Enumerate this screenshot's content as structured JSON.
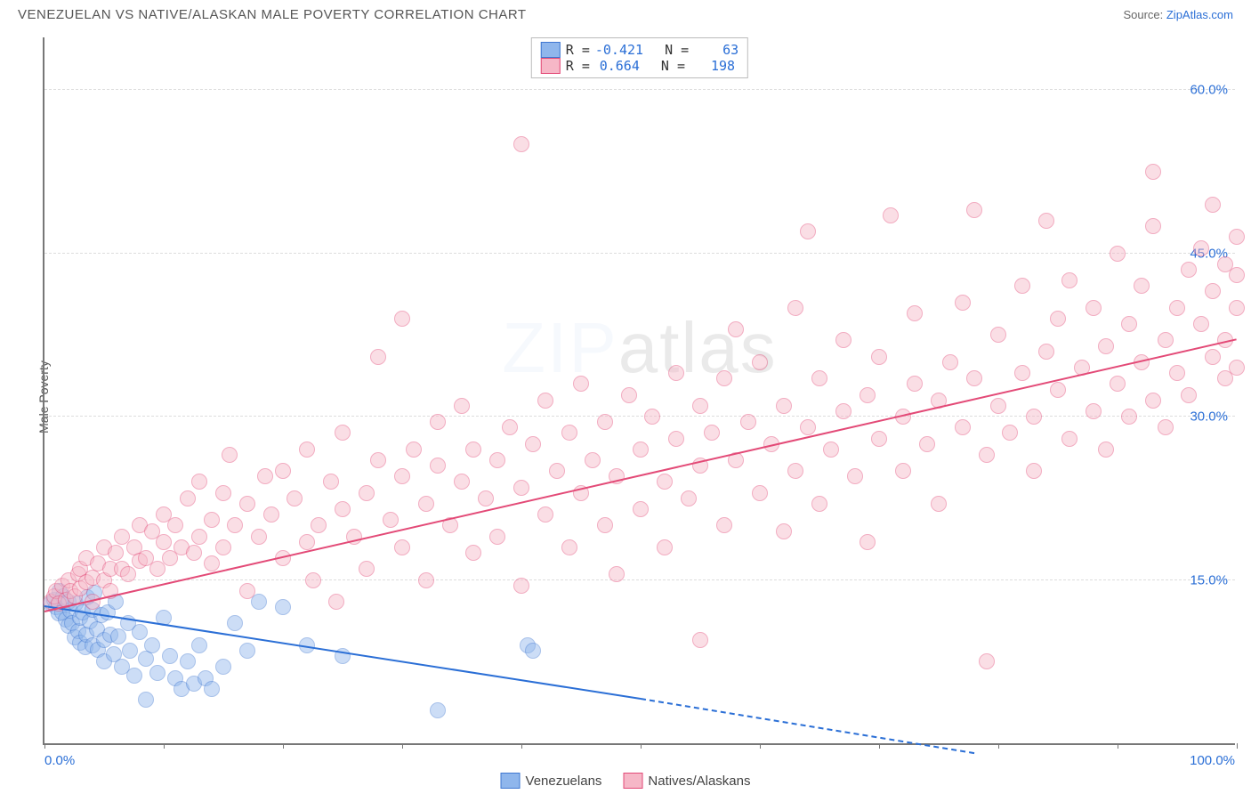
{
  "title": "VENEZUELAN VS NATIVE/ALASKAN MALE POVERTY CORRELATION CHART",
  "source_prefix": "Source: ",
  "source_name": "ZipAtlas.com",
  "watermark": "ZIPatlas",
  "ylabel": "Male Poverty",
  "chart": {
    "type": "scatter",
    "xlim": [
      0,
      100
    ],
    "ylim": [
      0,
      65
    ],
    "x_ticks": [
      0,
      10,
      20,
      30,
      40,
      50,
      60,
      70,
      80,
      90,
      100
    ],
    "x_tick_labels": {
      "0": "0.0%",
      "100": "100.0%"
    },
    "y_gridlines": [
      15,
      30,
      45,
      60
    ],
    "y_tick_labels": {
      "15": "15.0%",
      "30": "30.0%",
      "45": "45.0%",
      "60": "60.0%"
    },
    "grid_color": "#dddddd",
    "axis_color": "#777777",
    "background": "#ffffff",
    "marker_radius": 9,
    "marker_opacity": 0.45,
    "series": [
      {
        "name": "Venezuelans",
        "fill": "#8fb6ec",
        "stroke": "#3f77d1",
        "R": "-0.421",
        "N": "63",
        "trend": {
          "x1": 0,
          "y1": 12.5,
          "x2": 50,
          "y2": 4.0,
          "color": "#2b6fd6",
          "dash_after_x": 50,
          "x3": 78,
          "y3": -1.0
        },
        "points": [
          [
            0.5,
            12.8
          ],
          [
            0.8,
            13.2
          ],
          [
            1.0,
            12.5
          ],
          [
            1.2,
            11.9
          ],
          [
            1.3,
            14.0
          ],
          [
            1.5,
            12.0
          ],
          [
            1.6,
            13.5
          ],
          [
            1.8,
            11.4
          ],
          [
            2.0,
            10.8
          ],
          [
            2.0,
            13.0
          ],
          [
            2.2,
            12.2
          ],
          [
            2.3,
            11.0
          ],
          [
            2.5,
            9.7
          ],
          [
            2.6,
            12.8
          ],
          [
            2.8,
            10.3
          ],
          [
            3.0,
            11.5
          ],
          [
            3.0,
            9.2
          ],
          [
            3.2,
            12.0
          ],
          [
            3.4,
            8.8
          ],
          [
            3.5,
            10.0
          ],
          [
            3.6,
            13.4
          ],
          [
            3.8,
            11.2
          ],
          [
            4.0,
            9.0
          ],
          [
            4.0,
            12.3
          ],
          [
            4.2,
            13.8
          ],
          [
            4.4,
            10.5
          ],
          [
            4.5,
            8.6
          ],
          [
            4.8,
            11.8
          ],
          [
            5.0,
            9.5
          ],
          [
            5.0,
            7.5
          ],
          [
            5.3,
            12.0
          ],
          [
            5.5,
            10.0
          ],
          [
            5.8,
            8.2
          ],
          [
            6.0,
            13.0
          ],
          [
            6.2,
            9.8
          ],
          [
            6.5,
            7.0
          ],
          [
            7.0,
            11.0
          ],
          [
            7.2,
            8.5
          ],
          [
            7.5,
            6.2
          ],
          [
            8.0,
            10.2
          ],
          [
            8.5,
            7.8
          ],
          [
            8.5,
            4.0
          ],
          [
            9.0,
            9.0
          ],
          [
            9.5,
            6.5
          ],
          [
            10.0,
            11.5
          ],
          [
            10.5,
            8.0
          ],
          [
            11.0,
            6.0
          ],
          [
            11.5,
            5.0
          ],
          [
            12.0,
            7.5
          ],
          [
            12.5,
            5.5
          ],
          [
            13.0,
            9.0
          ],
          [
            13.5,
            6.0
          ],
          [
            14.0,
            5.0
          ],
          [
            15.0,
            7.0
          ],
          [
            16.0,
            11.0
          ],
          [
            17.0,
            8.5
          ],
          [
            18.0,
            13.0
          ],
          [
            20.0,
            12.5
          ],
          [
            22.0,
            9.0
          ],
          [
            25.0,
            8.0
          ],
          [
            33.0,
            3.0
          ],
          [
            40.5,
            9.0
          ],
          [
            41.0,
            8.5
          ]
        ]
      },
      {
        "name": "Natives/Alaskans",
        "fill": "#f6b7c7",
        "stroke": "#e34a77",
        "R": "0.664",
        "N": "198",
        "trend": {
          "x1": 0,
          "y1": 12.0,
          "x2": 100,
          "y2": 37.0,
          "color": "#e34a77"
        },
        "points": [
          [
            0.5,
            13.0
          ],
          [
            0.8,
            13.5
          ],
          [
            1.0,
            14.0
          ],
          [
            1.2,
            12.8
          ],
          [
            1.5,
            14.5
          ],
          [
            1.8,
            13.2
          ],
          [
            2.0,
            15.0
          ],
          [
            2.2,
            14.0
          ],
          [
            2.5,
            13.5
          ],
          [
            2.8,
            15.5
          ],
          [
            3.0,
            14.2
          ],
          [
            3.0,
            16.0
          ],
          [
            3.5,
            14.8
          ],
          [
            3.5,
            17.0
          ],
          [
            4.0,
            15.2
          ],
          [
            4.0,
            13.0
          ],
          [
            4.5,
            16.5
          ],
          [
            5.0,
            15.0
          ],
          [
            5.0,
            18.0
          ],
          [
            5.5,
            16.0
          ],
          [
            5.5,
            14.0
          ],
          [
            6.0,
            17.5
          ],
          [
            6.5,
            16.0
          ],
          [
            6.5,
            19.0
          ],
          [
            7.0,
            15.5
          ],
          [
            7.5,
            18.0
          ],
          [
            8.0,
            16.8
          ],
          [
            8.0,
            20.0
          ],
          [
            8.5,
            17.0
          ],
          [
            9.0,
            19.5
          ],
          [
            9.5,
            16.0
          ],
          [
            10.0,
            18.5
          ],
          [
            10.0,
            21.0
          ],
          [
            10.5,
            17.0
          ],
          [
            11.0,
            20.0
          ],
          [
            11.5,
            18.0
          ],
          [
            12.0,
            22.5
          ],
          [
            12.5,
            17.5
          ],
          [
            13.0,
            19.0
          ],
          [
            13.0,
            24.0
          ],
          [
            14.0,
            20.5
          ],
          [
            14.0,
            16.5
          ],
          [
            15.0,
            23.0
          ],
          [
            15.0,
            18.0
          ],
          [
            15.5,
            26.5
          ],
          [
            16.0,
            20.0
          ],
          [
            17.0,
            22.0
          ],
          [
            17.0,
            14.0
          ],
          [
            18.0,
            19.0
          ],
          [
            18.5,
            24.5
          ],
          [
            19.0,
            21.0
          ],
          [
            20.0,
            17.0
          ],
          [
            20.0,
            25.0
          ],
          [
            21.0,
            22.5
          ],
          [
            22.0,
            18.5
          ],
          [
            22.0,
            27.0
          ],
          [
            22.5,
            15.0
          ],
          [
            23.0,
            20.0
          ],
          [
            24.0,
            24.0
          ],
          [
            24.5,
            13.0
          ],
          [
            25.0,
            21.5
          ],
          [
            25.0,
            28.5
          ],
          [
            26.0,
            19.0
          ],
          [
            27.0,
            23.0
          ],
          [
            27.0,
            16.0
          ],
          [
            28.0,
            26.0
          ],
          [
            28.0,
            35.5
          ],
          [
            29.0,
            20.5
          ],
          [
            30.0,
            24.5
          ],
          [
            30.0,
            18.0
          ],
          [
            30.0,
            39.0
          ],
          [
            31.0,
            27.0
          ],
          [
            32.0,
            22.0
          ],
          [
            32.0,
            15.0
          ],
          [
            33.0,
            25.5
          ],
          [
            33.0,
            29.5
          ],
          [
            34.0,
            20.0
          ],
          [
            35.0,
            24.0
          ],
          [
            35.0,
            31.0
          ],
          [
            36.0,
            17.5
          ],
          [
            36.0,
            27.0
          ],
          [
            37.0,
            22.5
          ],
          [
            38.0,
            26.0
          ],
          [
            38.0,
            19.0
          ],
          [
            39.0,
            29.0
          ],
          [
            40.0,
            55.0
          ],
          [
            40.0,
            23.5
          ],
          [
            40.0,
            14.5
          ],
          [
            41.0,
            27.5
          ],
          [
            42.0,
            21.0
          ],
          [
            42.0,
            31.5
          ],
          [
            43.0,
            25.0
          ],
          [
            44.0,
            18.0
          ],
          [
            44.0,
            28.5
          ],
          [
            45.0,
            23.0
          ],
          [
            45.0,
            33.0
          ],
          [
            46.0,
            26.0
          ],
          [
            47.0,
            20.0
          ],
          [
            47.0,
            29.5
          ],
          [
            48.0,
            24.5
          ],
          [
            48.0,
            15.5
          ],
          [
            49.0,
            32.0
          ],
          [
            50.0,
            27.0
          ],
          [
            50.0,
            21.5
          ],
          [
            51.0,
            30.0
          ],
          [
            52.0,
            24.0
          ],
          [
            52.0,
            18.0
          ],
          [
            53.0,
            28.0
          ],
          [
            53.0,
            34.0
          ],
          [
            54.0,
            22.5
          ],
          [
            55.0,
            31.0
          ],
          [
            55.0,
            25.5
          ],
          [
            55.0,
            9.5
          ],
          [
            56.0,
            28.5
          ],
          [
            57.0,
            20.0
          ],
          [
            57.0,
            33.5
          ],
          [
            58.0,
            26.0
          ],
          [
            58.0,
            38.0
          ],
          [
            59.0,
            29.5
          ],
          [
            60.0,
            23.0
          ],
          [
            60.0,
            35.0
          ],
          [
            61.0,
            27.5
          ],
          [
            62.0,
            31.0
          ],
          [
            62.0,
            19.5
          ],
          [
            63.0,
            25.0
          ],
          [
            63.0,
            40.0
          ],
          [
            64.0,
            29.0
          ],
          [
            64.0,
            47.0
          ],
          [
            65.0,
            22.0
          ],
          [
            65.0,
            33.5
          ],
          [
            66.0,
            27.0
          ],
          [
            67.0,
            30.5
          ],
          [
            67.0,
            37.0
          ],
          [
            68.0,
            24.5
          ],
          [
            69.0,
            32.0
          ],
          [
            69.0,
            18.5
          ],
          [
            70.0,
            28.0
          ],
          [
            70.0,
            35.5
          ],
          [
            71.0,
            48.5
          ],
          [
            72.0,
            30.0
          ],
          [
            72.0,
            25.0
          ],
          [
            73.0,
            33.0
          ],
          [
            73.0,
            39.5
          ],
          [
            74.0,
            27.5
          ],
          [
            75.0,
            31.5
          ],
          [
            75.0,
            22.0
          ],
          [
            76.0,
            35.0
          ],
          [
            77.0,
            29.0
          ],
          [
            77.0,
            40.5
          ],
          [
            78.0,
            33.5
          ],
          [
            78.0,
            49.0
          ],
          [
            79.0,
            26.5
          ],
          [
            79.0,
            7.5
          ],
          [
            80.0,
            31.0
          ],
          [
            80.0,
            37.5
          ],
          [
            81.0,
            28.5
          ],
          [
            82.0,
            34.0
          ],
          [
            82.0,
            42.0
          ],
          [
            83.0,
            30.0
          ],
          [
            83.0,
            25.0
          ],
          [
            84.0,
            36.0
          ],
          [
            84.0,
            48.0
          ],
          [
            85.0,
            32.5
          ],
          [
            85.0,
            39.0
          ],
          [
            86.0,
            28.0
          ],
          [
            86.0,
            42.5
          ],
          [
            87.0,
            34.5
          ],
          [
            88.0,
            30.5
          ],
          [
            88.0,
            40.0
          ],
          [
            89.0,
            36.5
          ],
          [
            89.0,
            27.0
          ],
          [
            90.0,
            33.0
          ],
          [
            90.0,
            45.0
          ],
          [
            91.0,
            38.5
          ],
          [
            91.0,
            30.0
          ],
          [
            92.0,
            35.0
          ],
          [
            92.0,
            42.0
          ],
          [
            93.0,
            31.5
          ],
          [
            93.0,
            47.5
          ],
          [
            93.0,
            52.5
          ],
          [
            94.0,
            37.0
          ],
          [
            94.0,
            29.0
          ],
          [
            95.0,
            40.0
          ],
          [
            95.0,
            34.0
          ],
          [
            96.0,
            43.5
          ],
          [
            96.0,
            32.0
          ],
          [
            97.0,
            38.5
          ],
          [
            97.0,
            45.5
          ],
          [
            98.0,
            35.5
          ],
          [
            98.0,
            41.5
          ],
          [
            98.0,
            49.5
          ],
          [
            99.0,
            33.5
          ],
          [
            99.0,
            44.0
          ],
          [
            99.0,
            37.0
          ],
          [
            100.0,
            40.0
          ],
          [
            100.0,
            34.5
          ],
          [
            100.0,
            43.0
          ],
          [
            100.0,
            46.5
          ]
        ]
      }
    ]
  },
  "legend_bottom": [
    {
      "label": "Venezuelans",
      "fill": "#8fb6ec",
      "stroke": "#3f77d1"
    },
    {
      "label": "Natives/Alaskans",
      "fill": "#f6b7c7",
      "stroke": "#e34a77"
    }
  ]
}
